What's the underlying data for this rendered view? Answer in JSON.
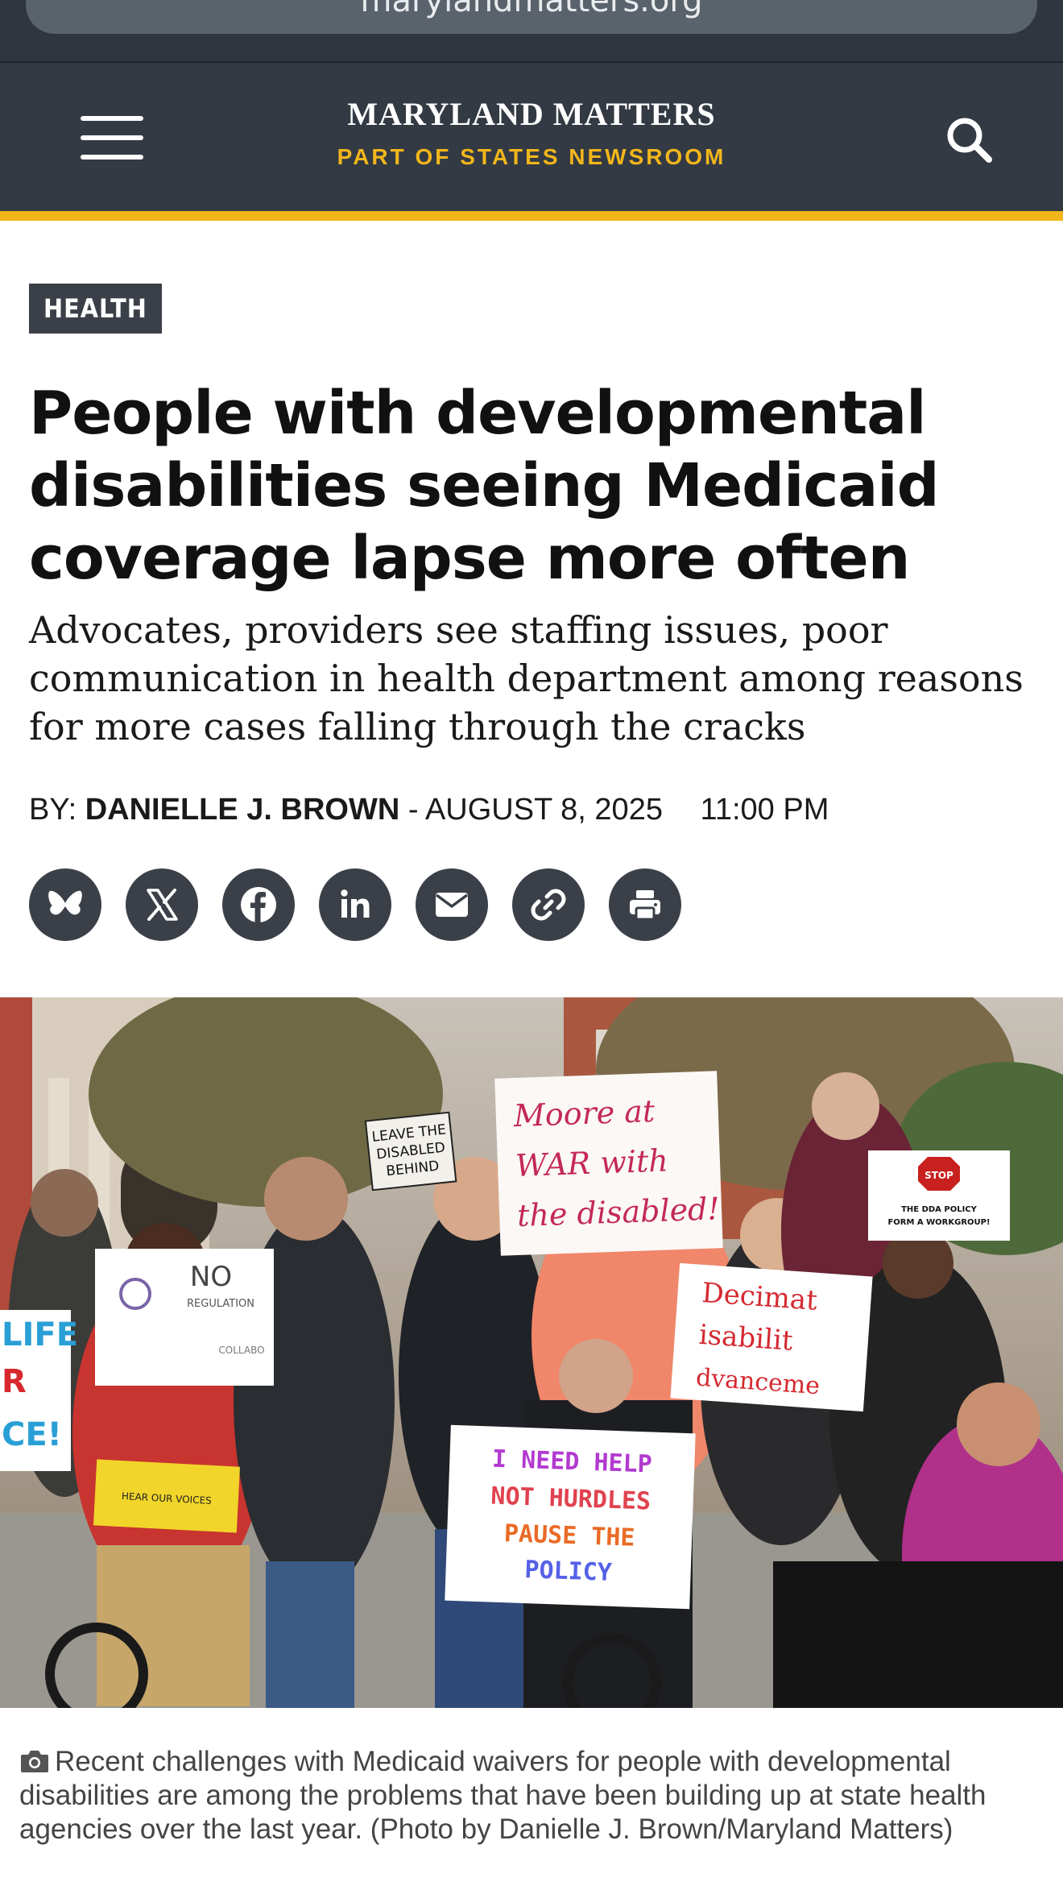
{
  "browser": {
    "url": "marylandmatters.org"
  },
  "header": {
    "site_name": "MARYLAND MATTERS",
    "tagline": "PART OF STATES NEWSROOM",
    "menu_icon": "hamburger-menu-icon",
    "search_icon": "search-icon"
  },
  "colors": {
    "header_bg": "#333a43",
    "accent": "#f2b61b",
    "badge_bg": "#3b4048"
  },
  "article": {
    "category": "HEALTH",
    "headline": "People with developmental disabilities seeing Medicaid coverage lapse more often",
    "subheadline": "Advocates, providers see staffing issues, poor communication in health department among reasons for more cases falling through the cracks",
    "byline_prefix": "BY:",
    "author": "DANIELLE J. BROWN",
    "date": "- AUGUST 8, 2025",
    "time": "11:00 PM"
  },
  "share": {
    "buttons": [
      {
        "name": "bluesky",
        "icon": "butterfly-icon"
      },
      {
        "name": "x",
        "icon": "x-icon"
      },
      {
        "name": "facebook",
        "icon": "facebook-icon"
      },
      {
        "name": "linkedin",
        "icon": "linkedin-icon"
      },
      {
        "name": "email",
        "icon": "envelope-icon"
      },
      {
        "name": "copy-link",
        "icon": "link-icon"
      },
      {
        "name": "print",
        "icon": "printer-icon"
      }
    ]
  },
  "photo": {
    "signs": {
      "leave_behind": [
        "LEAVE THE",
        "DISABLED",
        "BEHIND"
      ],
      "moore": [
        "Moore at",
        "WAR with",
        "the disabled!"
      ],
      "stop": "STOP",
      "policy_workgroup": [
        "THE DDA POLICY",
        "FORM A WORKGROUP!"
      ],
      "no_regulation": [
        "NO",
        "REGULATION",
        "COLLABO"
      ],
      "life": [
        "LIFE",
        "R",
        "CE!"
      ],
      "dda": [
        "Decimat",
        "isabilit",
        "dvanceme"
      ],
      "need_help": [
        "I NEED HELP",
        "NOT HURDLES",
        "PAUSE THE",
        "POLICY"
      ],
      "hear_voices": "HEAR OUR VOICES"
    }
  },
  "caption": {
    "icon": "camera-icon",
    "text": "Recent challenges with Medicaid waivers for people with developmental disabilities are among the problems that have been building up at state health agencies over the last year. (Photo by Danielle J. Brown/Maryland Matters)"
  }
}
